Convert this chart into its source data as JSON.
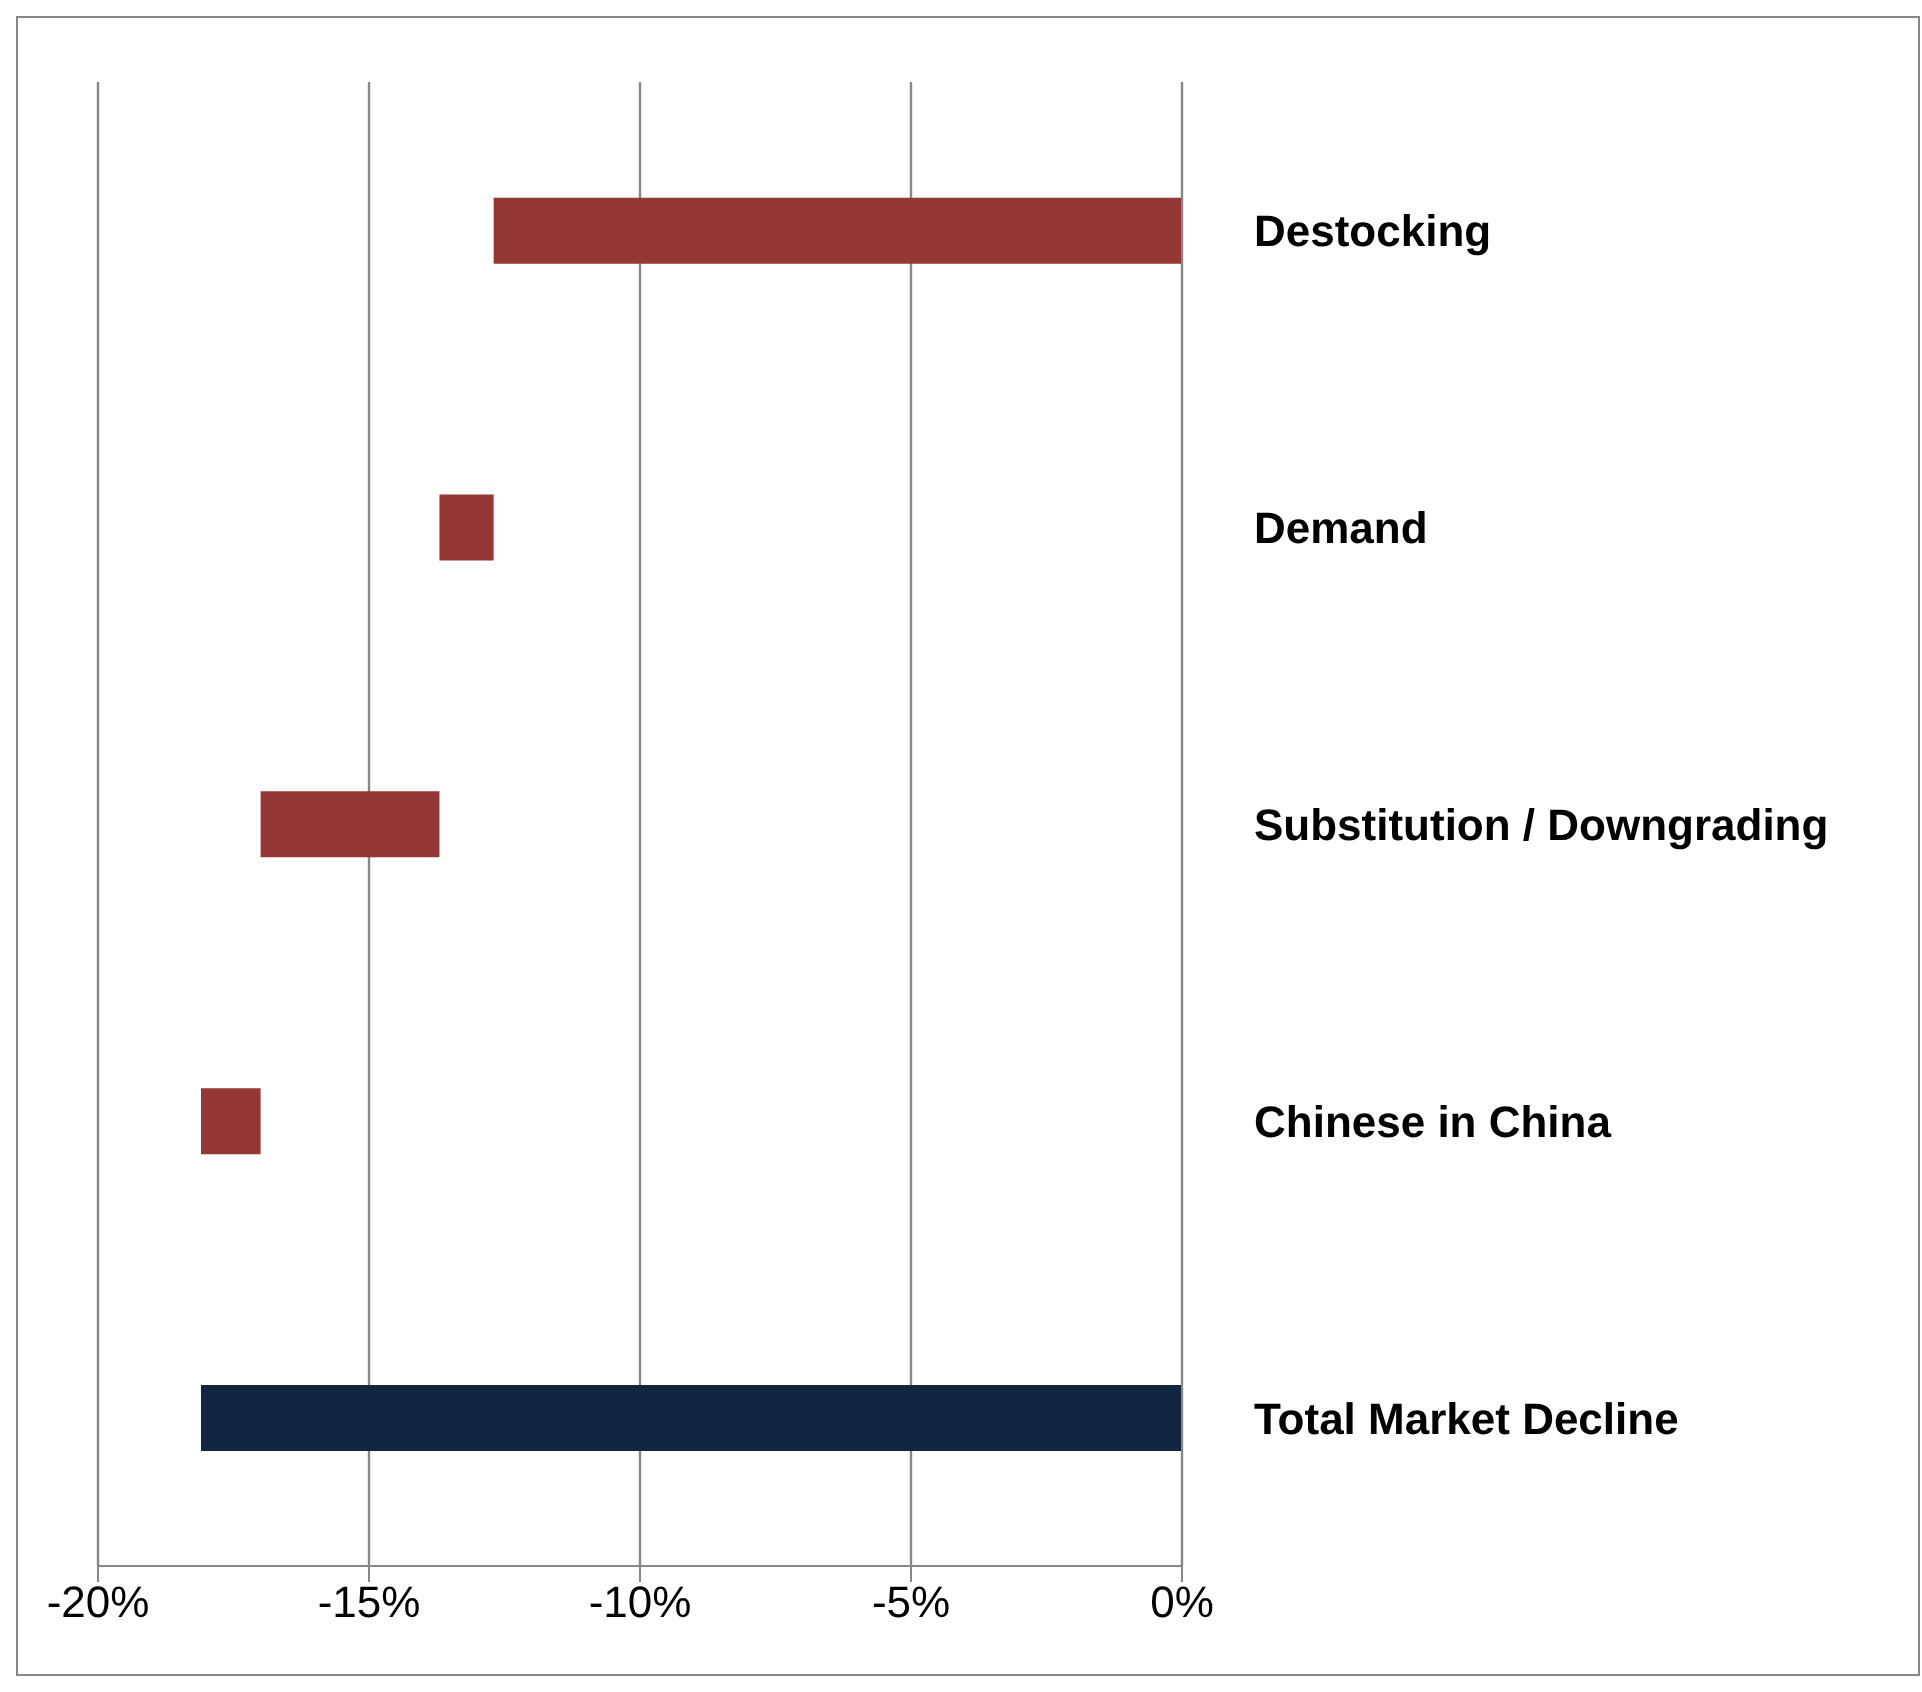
{
  "chart_data": {
    "type": "bar",
    "orientation": "horizontal",
    "categories": [
      "Destocking",
      "Demand",
      "Substitution / Downgrading",
      "Chinese in China",
      "Total Market Decline"
    ],
    "values": [
      -12.7,
      -1.0,
      -3.3,
      -1.1,
      -18.1
    ],
    "base": [
      0,
      -12.7,
      -13.7,
      -17.0,
      0
    ],
    "colors": [
      "#953735",
      "#953735",
      "#953735",
      "#953735",
      "#13263f"
    ],
    "xlim": [
      -20,
      0
    ],
    "xticks": [
      {
        "value": -20,
        "label": "-20%"
      },
      {
        "value": -15,
        "label": "-15%"
      },
      {
        "value": -10,
        "label": "-10%"
      },
      {
        "value": -5,
        "label": "-5%"
      },
      {
        "value": 0,
        "label": "0%"
      }
    ],
    "grid": "x"
  }
}
